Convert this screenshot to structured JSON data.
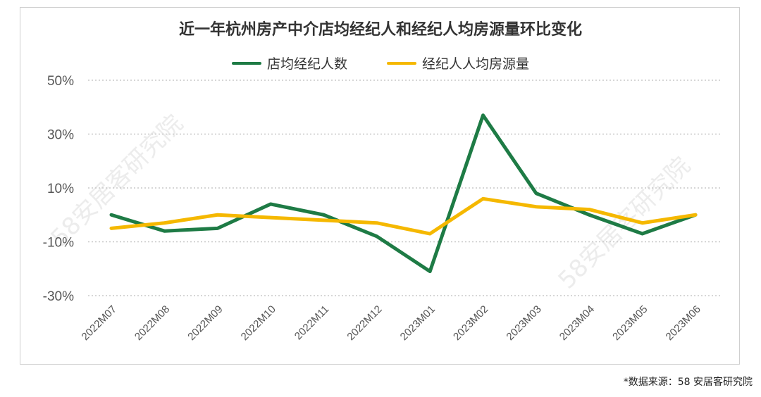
{
  "chart_data": {
    "type": "line",
    "title": "近一年杭州房产中介店均经纪人和经纪人均房源量环比变化",
    "categories": [
      "2022M07",
      "2022M08",
      "2022M09",
      "2022M10",
      "2022M11",
      "2022M12",
      "2023M01",
      "2023M02",
      "2023M03",
      "2023M04",
      "2023M05",
      "2023M06"
    ],
    "series": [
      {
        "name": "店均经纪人数",
        "color": "#1e7b45",
        "values": [
          0,
          -6,
          -5,
          4,
          0,
          -8,
          -21,
          37,
          8,
          0,
          -7,
          0
        ]
      },
      {
        "name": "经纪人人均房源量",
        "color": "#f5b800",
        "values": [
          -5,
          -3,
          0,
          -1,
          -2,
          -3,
          -7,
          6,
          3,
          2,
          -3,
          0
        ]
      }
    ],
    "yticks": [
      "50%",
      "30%",
      "10%",
      "-10%",
      "-30%"
    ],
    "ylim": [
      -30,
      50
    ],
    "grid": true,
    "legend_position": "top"
  },
  "watermark": "58安居客研究院",
  "source": "*数据来源：58 安居客研究院"
}
